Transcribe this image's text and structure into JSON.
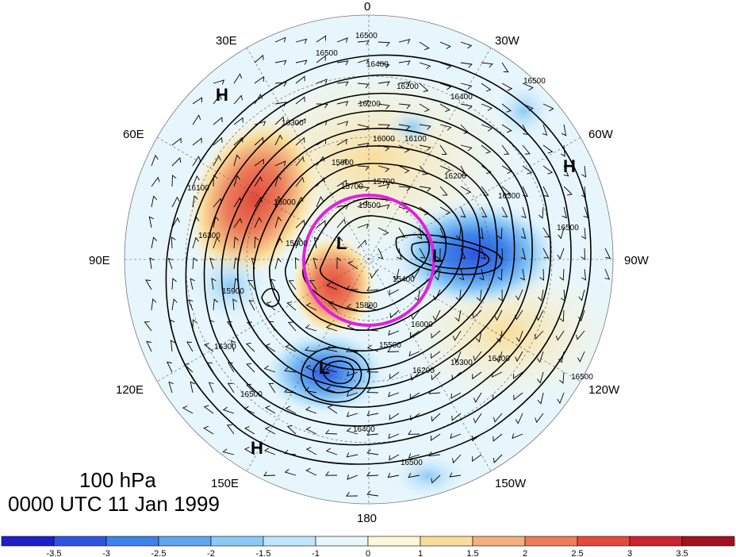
{
  "map": {
    "level": "100 hPa",
    "time": "0000 UTC 11 Jan 1999",
    "longitude_labels": [
      "0",
      "30W",
      "60W",
      "90W",
      "120W",
      "150W",
      "180",
      "150E",
      "120E",
      "90E",
      "60E",
      "30E"
    ],
    "contour_labels": [
      "16500",
      "16400",
      "16300",
      "16200",
      "16100",
      "16000",
      "15900",
      "15800",
      "15700",
      "15600",
      "15500",
      "15400"
    ],
    "pressure_centers": [
      {
        "name": "high-north-east",
        "label": "H"
      },
      {
        "name": "high-west",
        "label": "H"
      },
      {
        "name": "high-south",
        "label": "H"
      },
      {
        "name": "low-polar-a",
        "label": "L"
      },
      {
        "name": "low-polar-b",
        "label": "L"
      },
      {
        "name": "low-pacific",
        "label": "L"
      }
    ],
    "highlight_circle_color": "#e020e0",
    "contour_color": "#000000"
  },
  "colorbar": {
    "tick_labels": [
      "-3.5",
      "-3",
      "-2.5",
      "-2",
      "-1.5",
      "-1",
      "0",
      "1",
      "1.5",
      "2",
      "2.5",
      "3",
      "3.5"
    ],
    "colors": [
      "#2020c8",
      "#2f55e0",
      "#3d82ea",
      "#5fa6f0",
      "#8ccaf6",
      "#bfe6fa",
      "#e7f6fc",
      "#fdf6d8",
      "#f9dd9a",
      "#f3b07c",
      "#ec7c5a",
      "#e34a3c",
      "#cc2330",
      "#a3111f"
    ]
  }
}
